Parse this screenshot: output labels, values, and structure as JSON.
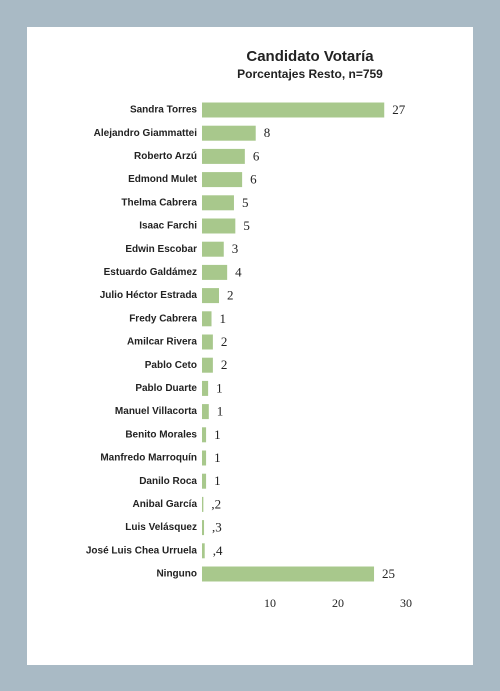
{
  "chart_data": {
    "type": "bar",
    "orientation": "horizontal",
    "title": "Candidato Votaría",
    "subtitle": "Porcentajes Resto, n=759",
    "categories": [
      "Sandra Torres",
      "Alejandro Giammattei",
      "Roberto Arzú",
      "Edmond Mulet",
      "Thelma Cabrera",
      "Isaac Farchi",
      "Edwin Escobar",
      "Estuardo Galdámez",
      "Julio Héctor Estrada",
      "Fredy Cabrera",
      "Amilcar Rivera",
      "Pablo Ceto",
      "Pablo Duarte",
      "Manuel Villacorta",
      "Benito Morales",
      "Manfredo Marroquín",
      "Danilo Roca",
      "Anibal García",
      "Luis Velásquez",
      "José Luis Chea Urruela",
      "Ninguno"
    ],
    "values": [
      26.8,
      7.9,
      6.3,
      5.9,
      4.7,
      4.9,
      3.2,
      3.7,
      2.5,
      1.4,
      1.6,
      1.6,
      0.9,
      1.0,
      0.6,
      0.6,
      0.6,
      0.2,
      0.3,
      0.4,
      25.3
    ],
    "value_labels": [
      "27",
      "8",
      "6",
      "6",
      "5",
      "5",
      "3",
      "4",
      "2",
      "1",
      "2",
      "2",
      "1",
      "1",
      "1",
      "1",
      "1",
      ",2",
      ",3",
      ",4",
      "25"
    ],
    "color": "#a8c88c",
    "xlim": [
      0,
      30
    ],
    "xticks": [
      10,
      20,
      30
    ]
  }
}
